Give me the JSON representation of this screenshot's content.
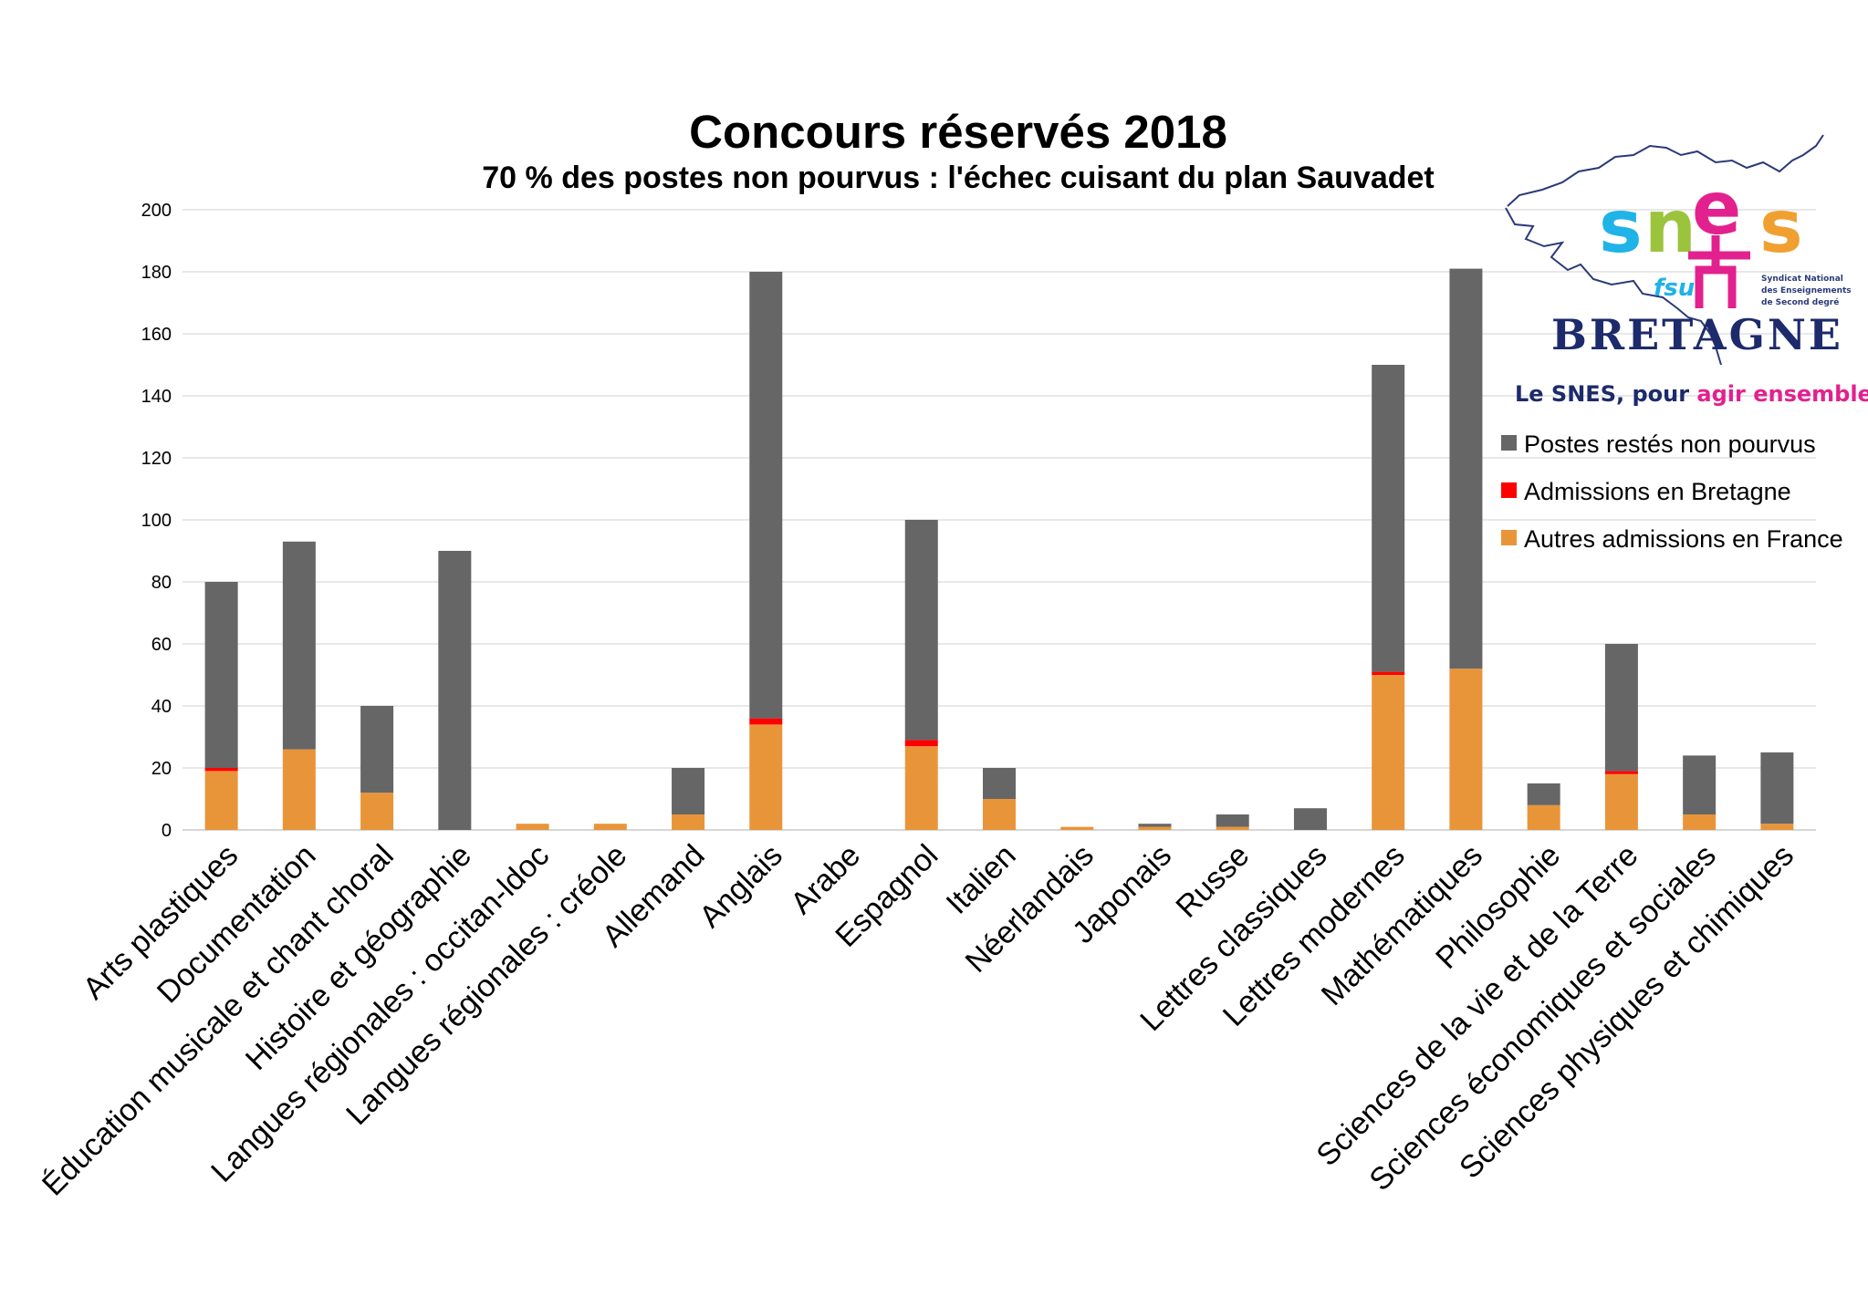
{
  "chart_data": {
    "type": "bar",
    "stacked": true,
    "title": "Concours réservés 2018",
    "subtitle": "70 % des postes non pourvus : l'échec cuisant du plan Sauvadet",
    "ylim": [
      0,
      200
    ],
    "yticks": [
      0,
      20,
      40,
      60,
      80,
      100,
      120,
      140,
      160,
      180,
      200
    ],
    "grid": true,
    "legend_position": "right",
    "categories": [
      "Arts plastiques",
      "Documentation",
      "Éducation musicale et chant choral",
      "Histoire et géographie",
      "Langues régionales : occitan-ldoc",
      "Langues régionales : créole",
      "Allemand",
      "Anglais",
      "Arabe",
      "Espagnol",
      "Italien",
      "Néerlandais",
      "Japonais",
      "Russe",
      "Lettres classiques",
      "Lettres modernes",
      "Mathématiques",
      "Philosophie",
      "Sciences de la vie et de la Terre",
      "Sciences économiques et sociales",
      "Sciences physiques et chimiques"
    ],
    "series": [
      {
        "name": "Autres admissions en France",
        "color": "#E8953A",
        "values": [
          19,
          26,
          12,
          0,
          2,
          2,
          5,
          34,
          0,
          27,
          10,
          1,
          1,
          1,
          0,
          50,
          52,
          8,
          18,
          5,
          2
        ]
      },
      {
        "name": "Admissions en Bretagne",
        "color": "#FF0000",
        "values": [
          1,
          0,
          0,
          0,
          0,
          0,
          0,
          2,
          0,
          2,
          0,
          0,
          0,
          0,
          0,
          1,
          0,
          0,
          1,
          0,
          0
        ]
      },
      {
        "name": "Postes restés non pourvus",
        "color": "#666666",
        "values": [
          60,
          67,
          28,
          90,
          0,
          0,
          15,
          144,
          0,
          71,
          10,
          0,
          1,
          4,
          7,
          99,
          129,
          7,
          41,
          19,
          23
        ]
      }
    ],
    "legend_order": [
      "Postes restés non pourvus",
      "Admissions en Bretagne",
      "Autres admissions en France"
    ]
  },
  "logo": {
    "sn_s1": "s",
    "sn_n": "n",
    "sn_e": "e",
    "sn_s2": "s",
    "fsu": "fsu",
    "syndicat_line1": "Syndicat National",
    "syndicat_line2": "des Enseignements",
    "syndicat_line3": "de Second degré",
    "region": "BRETAGNE",
    "slogan_a": "Le SNES, pour ",
    "slogan_b": "agir ensemble"
  }
}
